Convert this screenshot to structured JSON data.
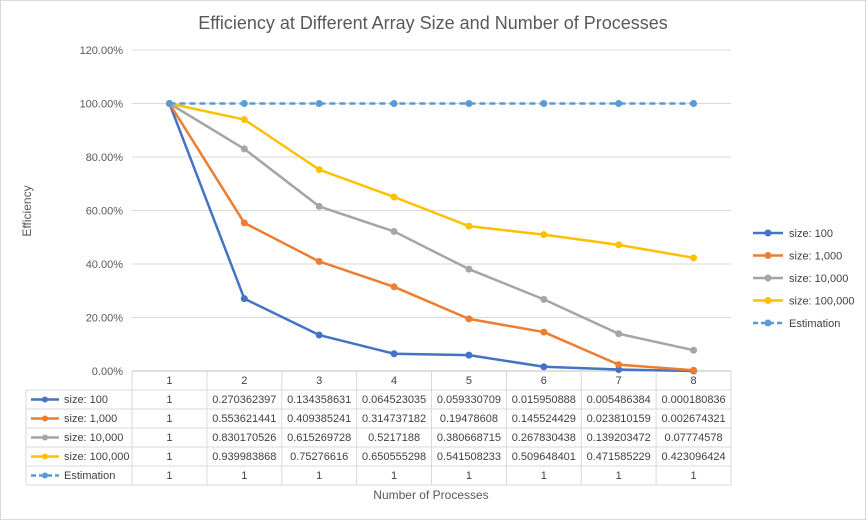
{
  "chart_data": {
    "type": "line",
    "title": "Efficiency at Different Array Size and Number of Processes",
    "xlabel": "Number of Processes",
    "ylabel": "Efficiency",
    "ylim": [
      0,
      1.2
    ],
    "yticks": [
      "0.00%",
      "20.00%",
      "40.00%",
      "60.00%",
      "80.00%",
      "100.00%",
      "120.00%"
    ],
    "categories": [
      "1",
      "2",
      "3",
      "4",
      "5",
      "6",
      "7",
      "8"
    ],
    "grid": true,
    "legend_position": "right",
    "series": [
      {
        "name": "size: 100",
        "color": "#4472c4",
        "dashed": false,
        "values": [
          1,
          0.270362397,
          0.134358631,
          0.064523035,
          0.059330709,
          0.015950888,
          0.005486384,
          0.000180836
        ],
        "labels": [
          "1",
          "0.270362397",
          "0.134358631",
          "0.064523035",
          "0.059330709",
          "0.015950888",
          "0.005486384",
          "0.000180836"
        ]
      },
      {
        "name": "size: 1,000",
        "color": "#ed7d31",
        "dashed": false,
        "values": [
          1,
          0.553621441,
          0.409385241,
          0.314737182,
          0.19478608,
          0.145524429,
          0.023810159,
          0.002674321
        ],
        "labels": [
          "1",
          "0.553621441",
          "0.409385241",
          "0.314737182",
          "0.19478608",
          "0.145524429",
          "0.023810159",
          "0.002674321"
        ]
      },
      {
        "name": "size: 10,000",
        "color": "#a5a5a5",
        "dashed": false,
        "values": [
          1,
          0.830170526,
          0.615269728,
          0.5217188,
          0.380668715,
          0.267830438,
          0.139203472,
          0.07774578
        ],
        "labels": [
          "1",
          "0.830170526",
          "0.615269728",
          "0.5217188",
          "0.380668715",
          "0.267830438",
          "0.139203472",
          "0.07774578"
        ]
      },
      {
        "name": "size: 100,000",
        "color": "#ffc000",
        "dashed": false,
        "values": [
          1,
          0.939983868,
          0.75276616,
          0.650555298,
          0.541508233,
          0.509648401,
          0.471585229,
          0.423096424
        ],
        "labels": [
          "1",
          "0.939983868",
          "0.75276616",
          "0.650555298",
          "0.541508233",
          "0.509648401",
          "0.471585229",
          "0.423096424"
        ]
      },
      {
        "name": "Estimation",
        "color": "#5b9bd5",
        "dashed": true,
        "values": [
          1,
          1,
          1,
          1,
          1,
          1,
          1,
          1
        ],
        "labels": [
          "1",
          "1",
          "1",
          "1",
          "1",
          "1",
          "1",
          "1"
        ]
      }
    ]
  }
}
